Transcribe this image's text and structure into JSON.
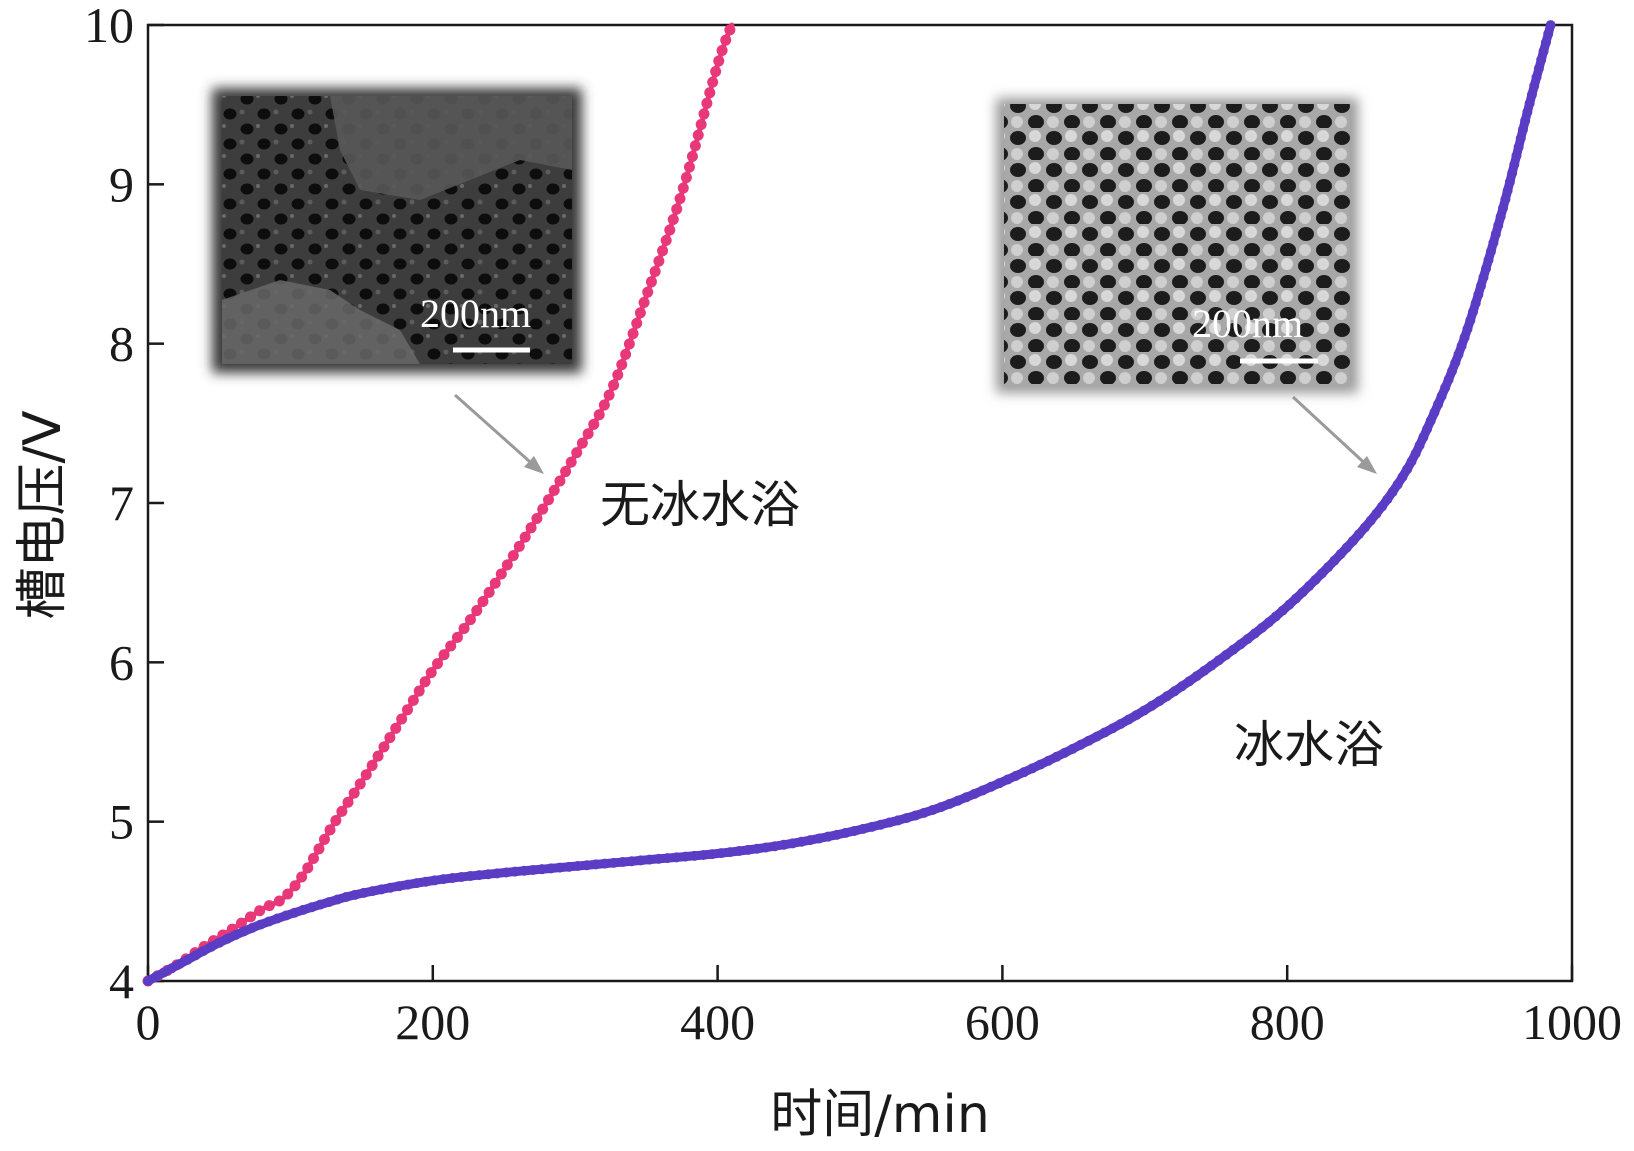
{
  "chart_data": {
    "type": "line",
    "xlabel": "时间/min",
    "ylabel": "槽电压/V",
    "xlim": [
      0,
      1000
    ],
    "ylim": [
      4,
      10
    ],
    "xticks": [
      0,
      200,
      400,
      600,
      800,
      1000
    ],
    "yticks": [
      4,
      5,
      6,
      7,
      8,
      9,
      10
    ],
    "grid": false,
    "series": [
      {
        "name": "无冰水浴",
        "color": "#e8387a",
        "x": [
          0,
          20,
          40,
          60,
          80,
          95,
          110,
          130,
          150,
          175,
          200,
          225,
          250,
          275,
          300,
          325,
          350,
          375,
          400,
          410
        ],
        "y": [
          4.0,
          4.1,
          4.22,
          4.33,
          4.45,
          4.52,
          4.68,
          4.98,
          5.25,
          5.6,
          5.95,
          6.25,
          6.58,
          6.93,
          7.3,
          7.7,
          8.3,
          8.95,
          9.75,
          10.0
        ]
      },
      {
        "name": "冰水浴",
        "color": "#5b3cc4",
        "x": [
          0,
          25,
          50,
          75,
          100,
          125,
          150,
          200,
          250,
          300,
          350,
          400,
          450,
          500,
          550,
          600,
          650,
          700,
          750,
          800,
          850,
          880,
          900,
          925,
          950,
          970,
          985
        ],
        "y": [
          4.0,
          4.12,
          4.24,
          4.34,
          4.42,
          4.49,
          4.55,
          4.63,
          4.68,
          4.72,
          4.76,
          4.8,
          4.86,
          4.95,
          5.07,
          5.25,
          5.46,
          5.7,
          6.0,
          6.35,
          6.8,
          7.15,
          7.5,
          8.05,
          8.8,
          9.5,
          10.0
        ]
      }
    ],
    "annotations": {
      "curve_label_no_ice": "无冰水浴",
      "curve_label_ice": "冰水浴",
      "scale_bar_left": "200nm",
      "scale_bar_right": "200nm"
    }
  },
  "colors": {
    "no_ice": "#e8387a",
    "ice": "#5b3cc4",
    "arrow": "#9a9a9a"
  }
}
